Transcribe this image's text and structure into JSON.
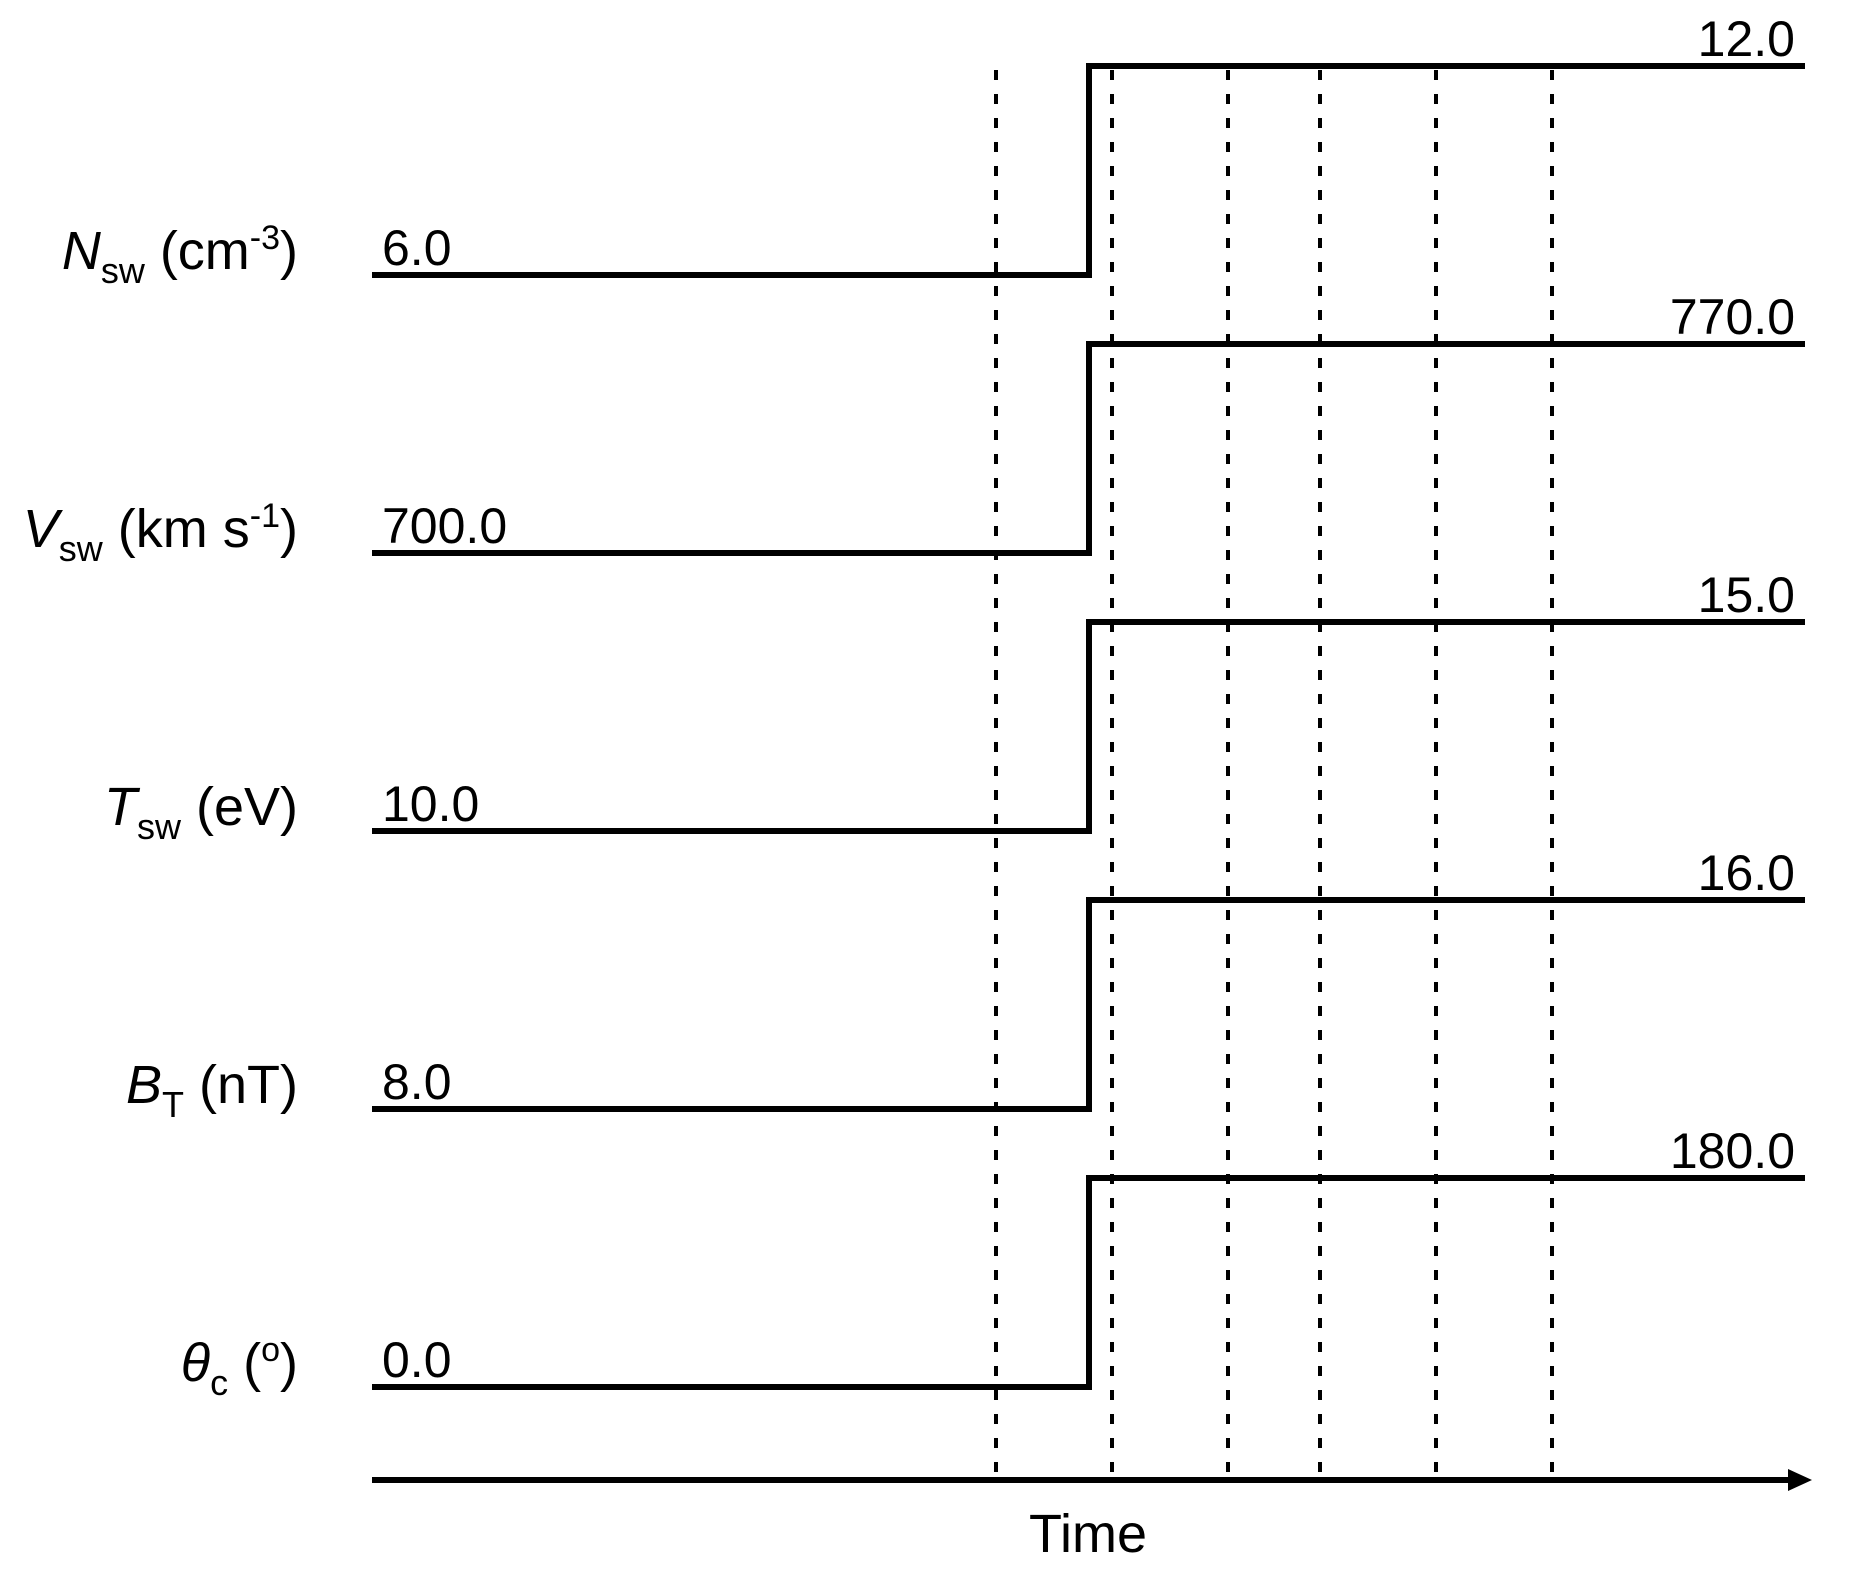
{
  "axis": {
    "label": "Time",
    "arrow": true
  },
  "colors": {
    "line": "#000000",
    "background": "#ffffff"
  },
  "step_time_label": "",
  "panels": [
    {
      "symbol": "N",
      "subscript": "sw",
      "unit_pre": " (cm",
      "unit_sup": "-3",
      "unit_post": ")",
      "before": "6.0",
      "after": "12.0"
    },
    {
      "symbol": "V",
      "subscript": "sw",
      "unit_pre": " (km s",
      "unit_sup": "-1",
      "unit_post": ")",
      "before": "700.0",
      "after": "770.0"
    },
    {
      "symbol": "T",
      "subscript": "sw",
      "unit_pre": " (eV)",
      "unit_sup": "",
      "unit_post": "",
      "before": "10.0",
      "after": "15.0"
    },
    {
      "symbol": "B",
      "subscript": "T",
      "unit_pre": " (nT)",
      "unit_sup": "",
      "unit_post": "",
      "before": "8.0",
      "after": "16.0"
    },
    {
      "symbol": "θ",
      "subscript": "c",
      "unit_pre": " (",
      "unit_sup": "o",
      "unit_post": ")",
      "before": "0.0",
      "after": "180.0"
    }
  ]
}
